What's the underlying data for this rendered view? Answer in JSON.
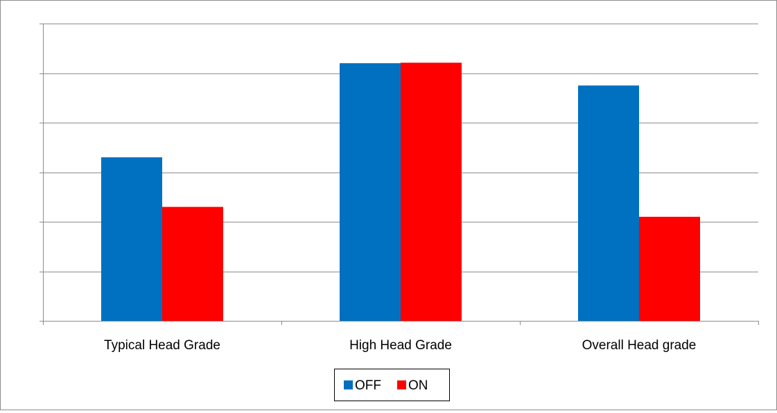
{
  "chart_data": {
    "type": "bar",
    "title": "",
    "xlabel": "",
    "ylabel": "",
    "y_tick_labels_shown": false,
    "grid": true,
    "legend_position": "bottom",
    "categories": [
      "Typical Head Grade",
      "High Head Grade",
      "Overall Head grade"
    ],
    "series": [
      {
        "name": "OFF",
        "color": "#0070C0",
        "values": [
          3.3,
          5.2,
          4.75
        ]
      },
      {
        "name": "ON",
        "color": "#FF0000",
        "values": [
          2.3,
          5.21,
          2.1
        ]
      }
    ],
    "ylim": [
      0,
      6
    ]
  }
}
